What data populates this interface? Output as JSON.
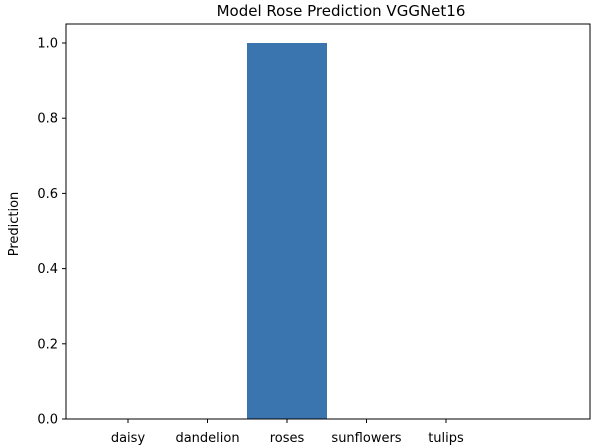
{
  "chart_data": {
    "type": "bar",
    "title": "Model Rose Prediction VGGNet16",
    "xlabel": "",
    "ylabel": "Prediction",
    "categories": [
      "daisy",
      "dandelion",
      "roses",
      "sunflowers",
      "tulips"
    ],
    "values": [
      0.0,
      0.0,
      1.0,
      0.0,
      0.0
    ],
    "ylim": [
      0,
      1.0
    ],
    "yticks": [
      "0.0",
      "0.2",
      "0.4",
      "0.6",
      "0.8",
      "1.0"
    ],
    "bar_color": "#3a75af",
    "grid": false
  }
}
